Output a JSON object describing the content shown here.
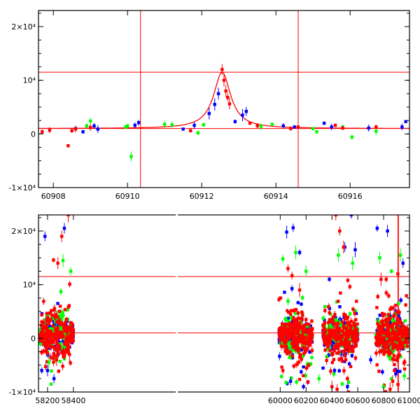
{
  "chart_data": [
    {
      "type": "scatter",
      "panel": "top",
      "title": "",
      "xlabel": "",
      "ylabel": "",
      "xlim": [
        60907.6,
        60917.6
      ],
      "ylim": [
        -10000,
        23000
      ],
      "xticks": [
        60908,
        60910,
        60912,
        60914,
        60916
      ],
      "xtick_labels": [
        "60908",
        "60910",
        "60912",
        "60914",
        "60916"
      ],
      "yticks": [
        -10000,
        0,
        10000,
        20000
      ],
      "ytick_labels": [
        "-1×10⁴",
        "0",
        "10⁴",
        "2×10⁴"
      ],
      "hlines": [
        11500,
        1000
      ],
      "vlines": [
        60910.35,
        60914.6
      ],
      "model": {
        "name": "model-curve",
        "baseline": 1000,
        "peak": 11500,
        "t0": 60912.55,
        "width": 0.33,
        "color": "#ff0000"
      },
      "series": [
        {
          "name": "blue",
          "color": "#0000ff",
          "x": [
            60908.6,
            60908.8,
            60909.1,
            60909.2,
            60910.2,
            60910.3,
            60911.5,
            60911.8,
            60912.2,
            60912.35,
            60912.45,
            60912.9,
            60913.1,
            60913.2,
            60914.2,
            60914.5,
            60915.3,
            60915.5,
            60916.5,
            60917.4,
            60917.5
          ],
          "y": [
            1000,
            400,
            1500,
            900,
            1600,
            2100,
            900,
            1600,
            3800,
            5500,
            7500,
            2300,
            3500,
            4200,
            1500,
            1300,
            2000,
            1300,
            1100,
            1300,
            2300
          ]
        },
        {
          "name": "green",
          "color": "#00ff00",
          "x": [
            60908.9,
            60909.0,
            60909.95,
            60910.0,
            60910.1,
            60911.0,
            60911.2,
            60911.9,
            60912.05,
            60913.6,
            60913.9,
            60915.0,
            60915.1,
            60915.8,
            60916.05,
            60916.7
          ],
          "y": [
            1500,
            2400,
            1300,
            1500,
            -4200,
            1800,
            1700,
            200,
            1700,
            1400,
            1800,
            1000,
            400,
            1300,
            -600,
            500
          ]
        },
        {
          "name": "red",
          "color": "#ff0000",
          "x": [
            60907.7,
            60907.9,
            60908.4,
            60908.5,
            60908.6,
            60909.0,
            60911.7,
            60912.55,
            60912.6,
            60912.65,
            60912.7,
            60912.75,
            60913.3,
            60913.5,
            60914.4,
            60914.6,
            60915.6,
            60915.8,
            60916.7
          ],
          "y": [
            400,
            700,
            -2200,
            600,
            900,
            1200,
            600,
            12000,
            10000,
            8000,
            6800,
            5600,
            2000,
            1500,
            1000,
            1300,
            1600,
            1100,
            1300
          ]
        }
      ]
    },
    {
      "type": "scatter",
      "panel": "bottom",
      "title": "",
      "xlabel": "",
      "ylabel": "",
      "xlim": [
        58130,
        61000
      ],
      "ylim": [
        -10000,
        23000
      ],
      "xticks": [
        58200,
        58400,
        60000,
        60200,
        60400,
        60600,
        60800,
        61000
      ],
      "xtick_labels": [
        "58200",
        "58400",
        "60000",
        "60200",
        "60400",
        "60600",
        "60800",
        "61000"
      ],
      "yticks": [
        -10000,
        0,
        10000,
        20000
      ],
      "ytick_labels": [
        "-1×10⁴",
        "0",
        "10⁴",
        "2×10⁴"
      ],
      "hlines": [
        11500,
        1000
      ],
      "vlines": [
        60910.35,
        60914.6
      ],
      "seasons": [
        [
          58140,
          58400
        ],
        [
          59990,
          60250
        ],
        [
          60330,
          60600
        ],
        [
          60740,
          60990
        ]
      ],
      "outliers": {
        "blue": [
          [
            58180,
            19000
          ],
          [
            58330,
            20500
          ],
          [
            60050,
            19800
          ],
          [
            60100,
            20600
          ],
          [
            60150,
            16000
          ],
          [
            60380,
            11000
          ],
          [
            60450,
            23500
          ],
          [
            60500,
            17000
          ],
          [
            60550,
            23000
          ],
          [
            60580,
            16500
          ],
          [
            60750,
            20500
          ],
          [
            60830,
            20000
          ],
          [
            60950,
            14000
          ],
          [
            58200,
            -6000
          ],
          [
            58250,
            -7500
          ],
          [
            60080,
            -8000
          ],
          [
            60180,
            -9000
          ],
          [
            60420,
            -6000
          ],
          [
            60520,
            -9000
          ],
          [
            60700,
            -4000
          ]
        ],
        "green": [
          [
            58320,
            14500
          ],
          [
            58380,
            12500
          ],
          [
            60020,
            14800
          ],
          [
            60120,
            16000
          ],
          [
            60200,
            12500
          ],
          [
            60450,
            15500
          ],
          [
            60560,
            14000
          ],
          [
            60770,
            15000
          ],
          [
            60860,
            12500
          ],
          [
            60930,
            15500
          ],
          [
            58210,
            -4500
          ],
          [
            60300,
            -7500
          ],
          [
            60480,
            -8500
          ],
          [
            60800,
            -9000
          ],
          [
            60960,
            -7000
          ]
        ],
        "red": [
          [
            58280,
            14000
          ],
          [
            58310,
            19000
          ],
          [
            58360,
            23000
          ],
          [
            60060,
            13000
          ],
          [
            60150,
            9000
          ],
          [
            60430,
            23000
          ],
          [
            60460,
            20000
          ],
          [
            60490,
            17000
          ],
          [
            60780,
            11000
          ],
          [
            60820,
            11000
          ],
          [
            60910,
            12000
          ],
          [
            58270,
            -4000
          ],
          [
            58370,
            -3000
          ],
          [
            60220,
            -5000
          ],
          [
            60400,
            -9000
          ],
          [
            60440,
            -9500
          ],
          [
            60520,
            -7500
          ],
          [
            60850,
            -9500
          ],
          [
            60870,
            -8000
          ]
        ]
      }
    }
  ]
}
